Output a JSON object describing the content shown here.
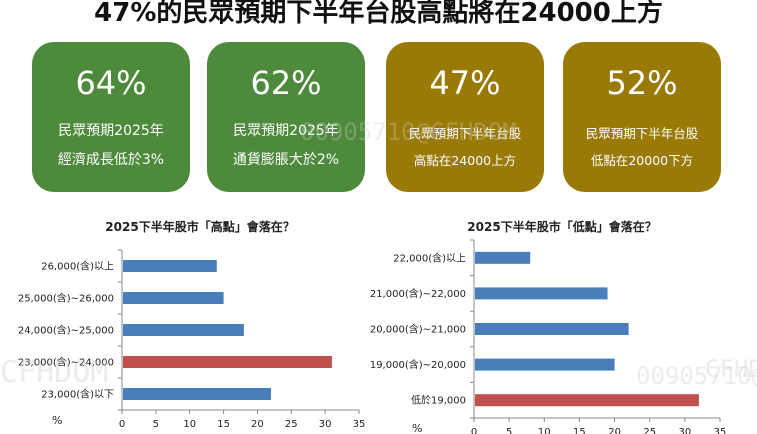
{
  "title": "47%的民眾預期下半年台股高點將在24000上方",
  "cards": [
    {
      "pct": "64%",
      "line1": "民眾預期2025年",
      "line2": "經濟成長低於3%",
      "color": "#4e8a3b"
    },
    {
      "pct": "62%",
      "line1": "民眾預期2025年",
      "line2": "通貨膨脹大於2%",
      "color": "#4e8a3b"
    },
    {
      "pct": "47%",
      "line1": "民眾預期下半年台股",
      "line2": "高點在24000上方",
      "color": "#9a7a06"
    },
    {
      "pct": "52%",
      "line1": "民眾預期下半年台股",
      "line2": "低點在20000下方",
      "color": "#9a7a06"
    }
  ],
  "watermarks": [
    "CFHDOM",
    "00905710@CFHDOM",
    "CFHDOM",
    "00905710@"
  ],
  "chart_data": [
    {
      "type": "bar",
      "orientation": "horizontal",
      "title": "2025下半年股市「高點」會落在？",
      "categories": [
        "26,000(含)以上",
        "25,000(含)~26,000",
        "24,000(含)~25,000",
        "23,000(含)~24,000",
        "23,000(含)以下"
      ],
      "values": [
        14,
        15,
        18,
        31,
        22
      ],
      "highlight_index": 3,
      "xlim": [
        0,
        35
      ],
      "xticks": [
        0,
        5,
        10,
        15,
        20,
        25,
        30,
        35
      ],
      "unit": "%",
      "bar_color": "#4a7ebb",
      "highlight_color": "#c0504d"
    },
    {
      "type": "bar",
      "orientation": "horizontal",
      "title": "2025下半年股市「低點」會落在？",
      "categories": [
        "22,000(含)以上",
        "21,000(含)~22,000",
        "20,000(含)~21,000",
        "19,000(含)~20,000",
        "低於19,000"
      ],
      "values": [
        8,
        19,
        22,
        20,
        32
      ],
      "highlight_index": 4,
      "xlim": [
        0,
        35
      ],
      "xticks": [
        0,
        5,
        10,
        15,
        20,
        25,
        30,
        35
      ],
      "unit": "%",
      "bar_color": "#4a7ebb",
      "highlight_color": "#c0504d"
    }
  ]
}
